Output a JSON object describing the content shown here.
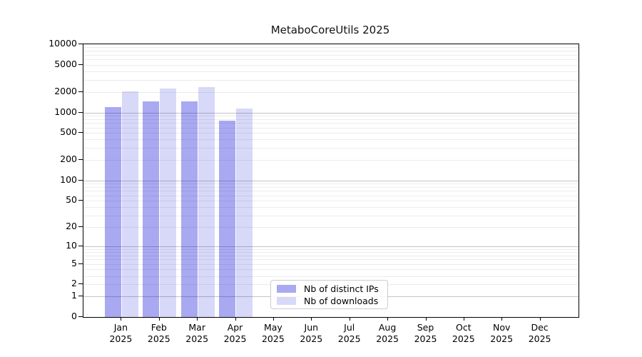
{
  "chart_data": {
    "type": "bar",
    "title": "MetaboCoreUtils 2025",
    "xlabel": "",
    "ylabel": "",
    "yscale": "log1p",
    "ylim": [
      0,
      10000
    ],
    "yticks": [
      0,
      1,
      2,
      5,
      10,
      20,
      50,
      100,
      200,
      500,
      1000,
      2000,
      5000,
      10000
    ],
    "grid": "horizontal, minor ticks light gray, decade lines darker gray",
    "legend_position": "lower center",
    "categories": [
      "Jan 2025",
      "Feb 2025",
      "Mar 2025",
      "Apr 2025",
      "May 2025",
      "Jun 2025",
      "Jul 2025",
      "Aug 2025",
      "Sep 2025",
      "Oct 2025",
      "Nov 2025",
      "Dec 2025"
    ],
    "series": [
      {
        "name": "Nb of distinct IPs",
        "color": "rgba(10,10,215,0.35)",
        "values": [
          1200,
          1450,
          1440,
          760,
          null,
          null,
          null,
          null,
          null,
          null,
          null,
          null
        ]
      },
      {
        "name": "Nb of downloads",
        "color": "rgba(10,10,215,0.16)",
        "values": [
          2050,
          2270,
          2360,
          1150,
          null,
          null,
          null,
          null,
          null,
          null,
          null,
          null
        ]
      }
    ]
  },
  "colors": {
    "spine": "#000000",
    "minor_grid": "#ececec",
    "decade_grid": "#c4c4c4",
    "background": "#ffffff"
  }
}
